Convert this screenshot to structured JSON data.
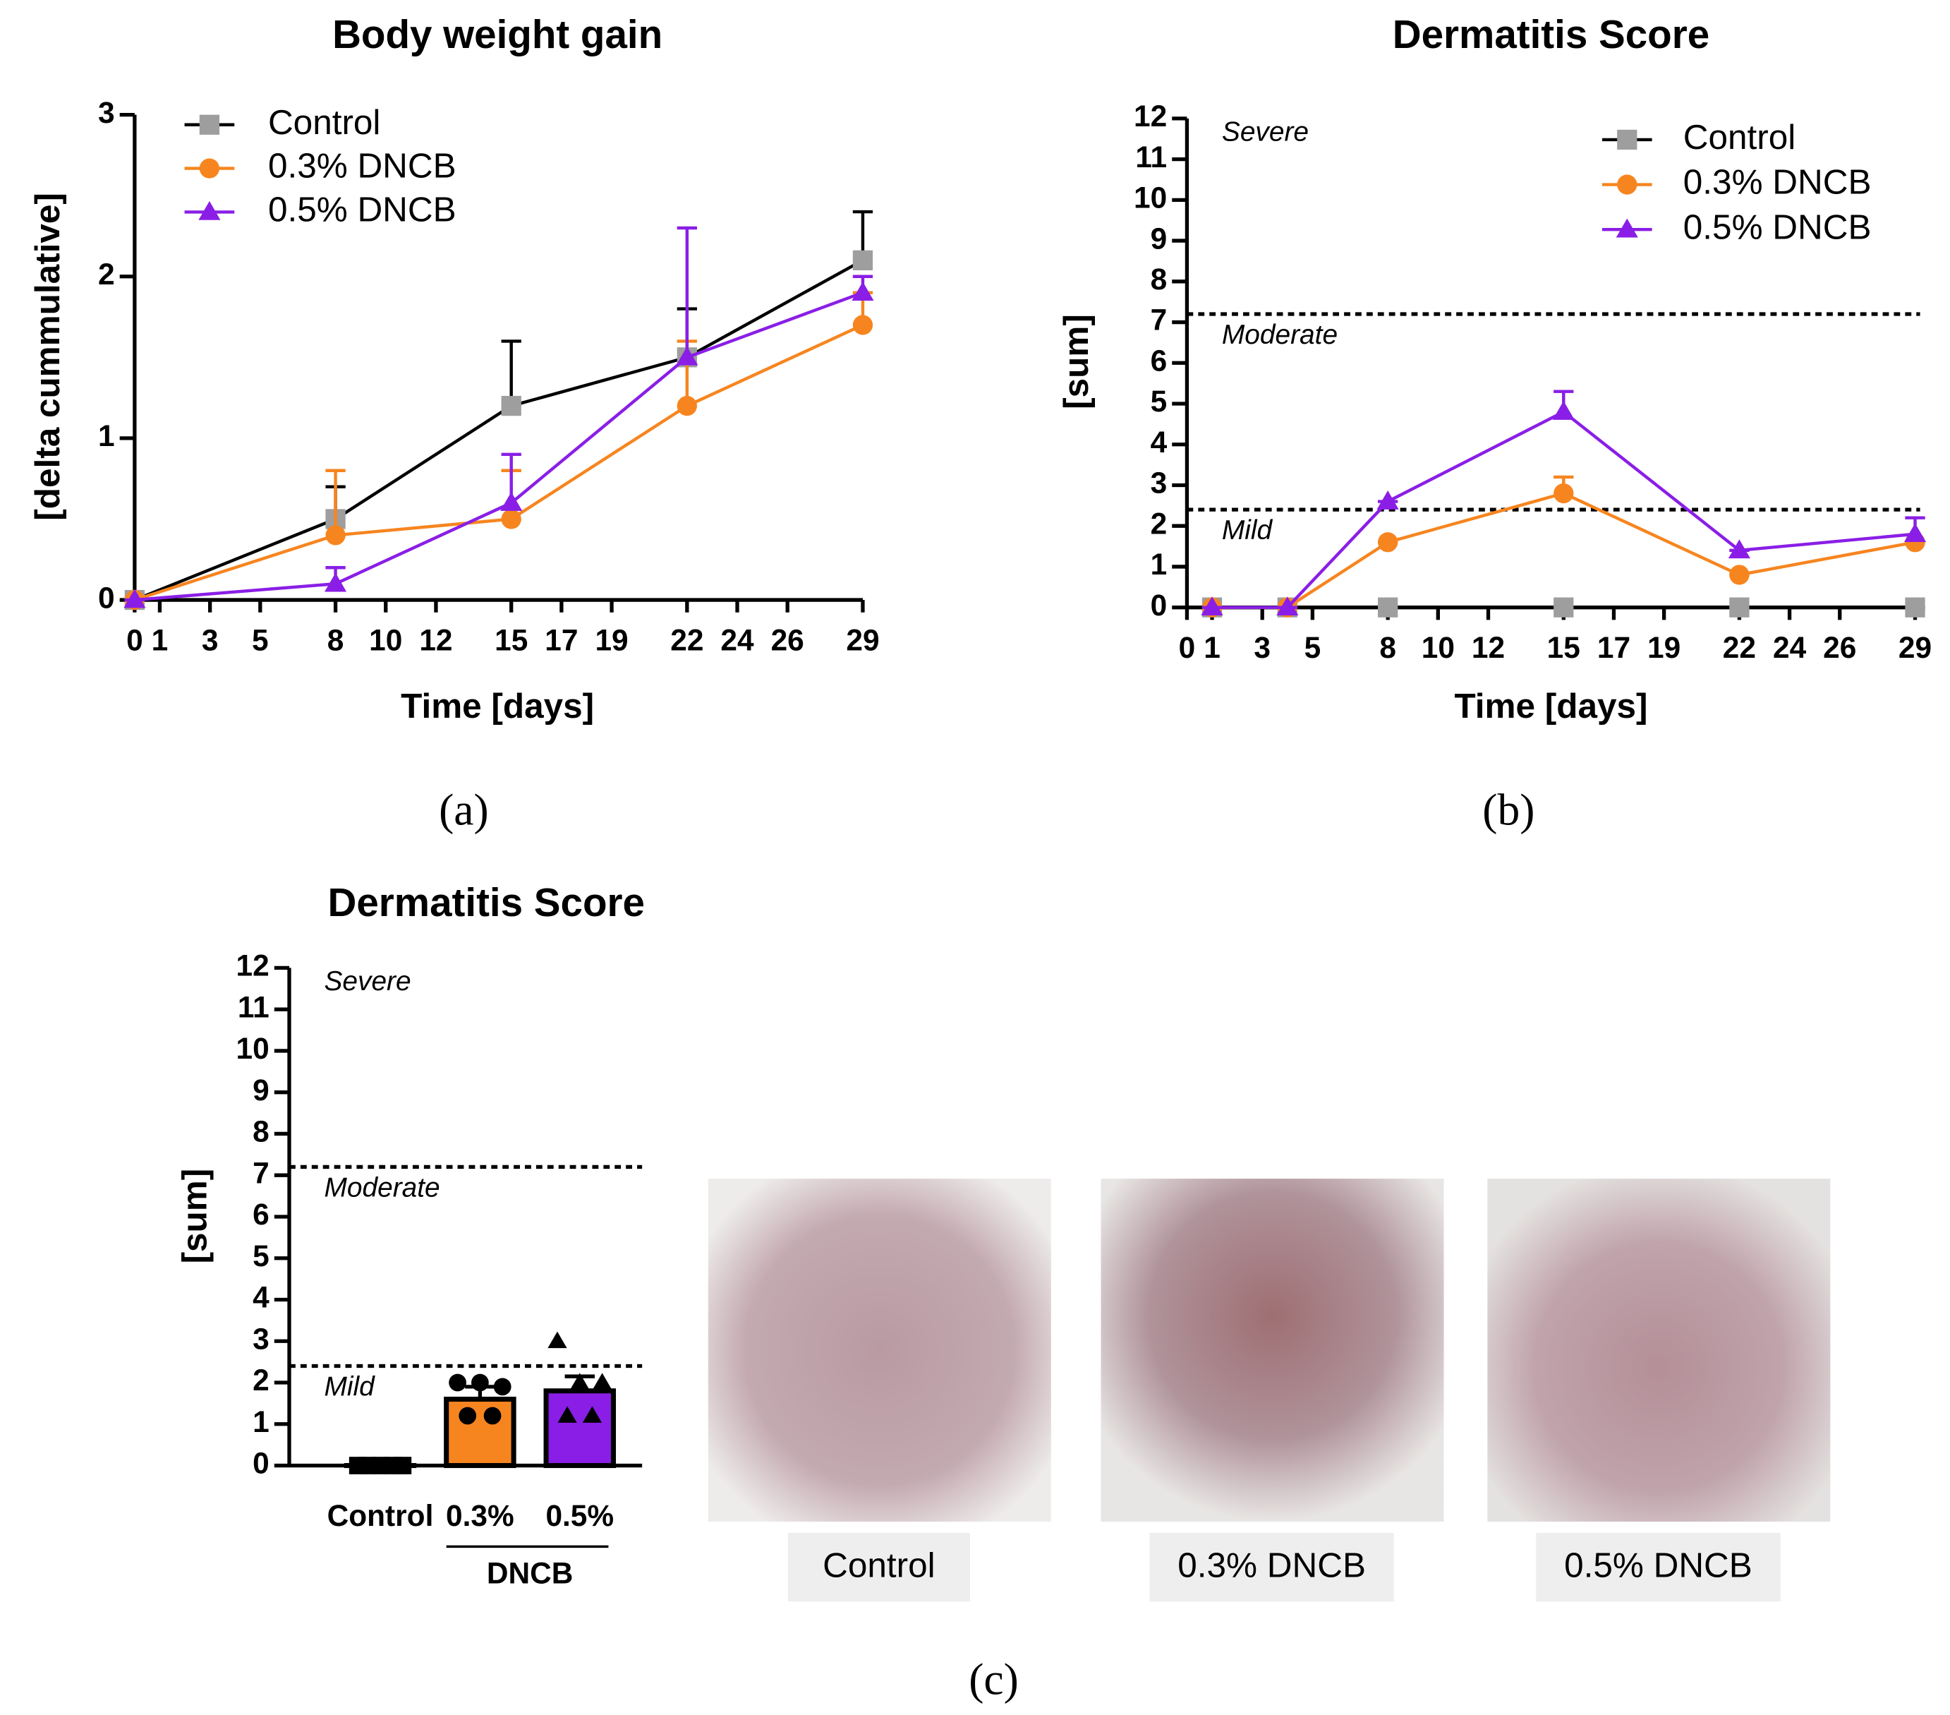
{
  "panel_labels": [
    "(a)",
    "(b)",
    "(c)"
  ],
  "photos": [
    {
      "label": "Control"
    },
    {
      "label": "0.3% DNCB"
    },
    {
      "label": "0.5% DNCB"
    }
  ],
  "chart_data": [
    {
      "type": "line",
      "title": "Body weight gain",
      "x_label": "Time [days]",
      "y_label": "[delta cummulative]",
      "xlim": [
        0,
        29
      ],
      "ylim": [
        0,
        3
      ],
      "xticks": [
        0,
        1,
        3,
        5,
        8,
        10,
        12,
        15,
        17,
        19,
        22,
        24,
        26,
        29
      ],
      "yticks": [
        0,
        1,
        2,
        3
      ],
      "legend": "top-left",
      "x": [
        0,
        8,
        15,
        22,
        29
      ],
      "series": [
        {
          "name": "Control",
          "marker": "square",
          "color": "#9e9e9e",
          "line_color": "#000000",
          "values": [
            0,
            0.5,
            1.2,
            1.5,
            2.1
          ],
          "errors": [
            0,
            0.2,
            0.4,
            0.3,
            0.3
          ]
        },
        {
          "name": "0.3% DNCB",
          "marker": "circle",
          "color": "#f7851f",
          "line_color": "#f7851f",
          "values": [
            0,
            0.4,
            0.5,
            1.2,
            1.7
          ],
          "errors": [
            0,
            0.4,
            0.3,
            0.4,
            0.2
          ]
        },
        {
          "name": "0.5% DNCB",
          "marker": "triangle",
          "color": "#8a1ee6",
          "line_color": "#8a1ee6",
          "values": [
            0,
            0.1,
            0.6,
            1.5,
            1.9
          ],
          "errors": [
            0,
            0.1,
            0.3,
            0.8,
            0.1
          ]
        }
      ]
    },
    {
      "type": "line",
      "title": "Dermatitis Score",
      "x_label": "Time [days]",
      "y_label": "[sum]",
      "xlim": [
        0,
        29
      ],
      "ylim": [
        0,
        12
      ],
      "xticks": [
        0,
        1,
        3,
        5,
        8,
        10,
        12,
        15,
        17,
        19,
        22,
        24,
        26,
        29
      ],
      "yticks": [
        0,
        1,
        2,
        3,
        4,
        5,
        6,
        7,
        8,
        9,
        10,
        11,
        12
      ],
      "legend": "top-right",
      "severity_levels": [
        {
          "label": "Severe"
        },
        {
          "label": "Moderate",
          "threshold": 7.2
        },
        {
          "label": "Mild",
          "threshold": 2.4
        }
      ],
      "x": [
        1,
        4,
        8,
        15,
        22,
        29
      ],
      "series": [
        {
          "name": "Control",
          "marker": "square",
          "color": "#9e9e9e",
          "line_color": "#000000",
          "values": [
            0,
            0,
            0,
            0,
            0,
            0
          ],
          "errors": [
            0,
            0,
            0,
            0,
            0,
            0
          ]
        },
        {
          "name": "0.3% DNCB",
          "marker": "circle",
          "color": "#f7851f",
          "line_color": "#f7851f",
          "values": [
            0,
            0,
            1.6,
            2.8,
            0.8,
            1.6
          ],
          "errors": [
            0,
            0,
            0,
            0.4,
            0,
            0
          ]
        },
        {
          "name": "0.5% DNCB",
          "marker": "triangle",
          "color": "#8a1ee6",
          "line_color": "#8a1ee6",
          "values": [
            0,
            0,
            2.6,
            4.8,
            1.4,
            1.8
          ],
          "errors": [
            0,
            0,
            0,
            0.5,
            0,
            0.4
          ]
        }
      ]
    },
    {
      "type": "bar",
      "title": "Dermatitis Score",
      "y_label": "[sum]",
      "ylim": [
        0,
        12
      ],
      "yticks": [
        0,
        1,
        2,
        3,
        4,
        5,
        6,
        7,
        8,
        9,
        10,
        11,
        12
      ],
      "severity_levels": [
        {
          "label": "Severe"
        },
        {
          "label": "Moderate",
          "threshold": 7.2
        },
        {
          "label": "Mild",
          "threshold": 2.4
        }
      ],
      "categories": [
        "Control",
        "0.3%",
        "0.5%"
      ],
      "group_label": "DNCB",
      "colors": [
        "#000000",
        "#f7851f",
        "#8a1ee6"
      ],
      "point_markers": [
        "square",
        "circle",
        "triangle"
      ],
      "values": [
        0,
        1.6,
        1.8
      ],
      "errors": [
        0,
        0.3,
        0.35
      ],
      "points": [
        [
          0,
          0,
          0,
          0,
          0
        ],
        [
          2,
          2,
          1.9,
          1.2,
          1.2
        ],
        [
          3,
          2,
          2,
          1.2,
          1.2
        ]
      ]
    }
  ]
}
